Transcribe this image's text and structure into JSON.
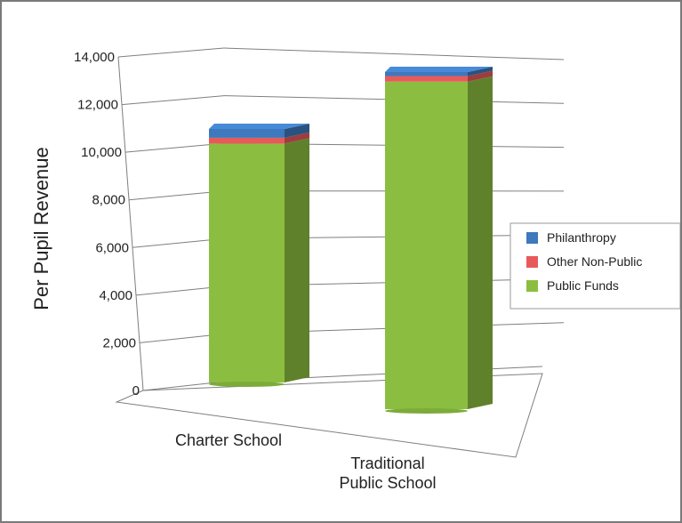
{
  "chart_data": {
    "type": "bar",
    "stacked": true,
    "three_d": true,
    "categories": [
      "Charter School",
      "Traditional\nPublic School"
    ],
    "series": [
      {
        "name": "Public Funds",
        "values": [
          10300,
          13000
        ],
        "color": "#8bbe40"
      },
      {
        "name": "Other Non-Public",
        "values": [
          250,
          220
        ],
        "color": "#e85a5a"
      },
      {
        "name": "Philanthropy",
        "values": [
          380,
          160
        ],
        "color": "#3e78bd"
      }
    ],
    "ylabel": "Per Pupil Revenue",
    "ylim": [
      0,
      14000
    ],
    "yticks": [
      "0",
      "2,000",
      "4,000",
      "6,000",
      "8,000",
      "10,000",
      "12,000",
      "14,000"
    ],
    "grid": true,
    "legend_position": "right",
    "legend_order": [
      "Philanthropy",
      "Other Non-Public",
      "Public Funds"
    ]
  }
}
